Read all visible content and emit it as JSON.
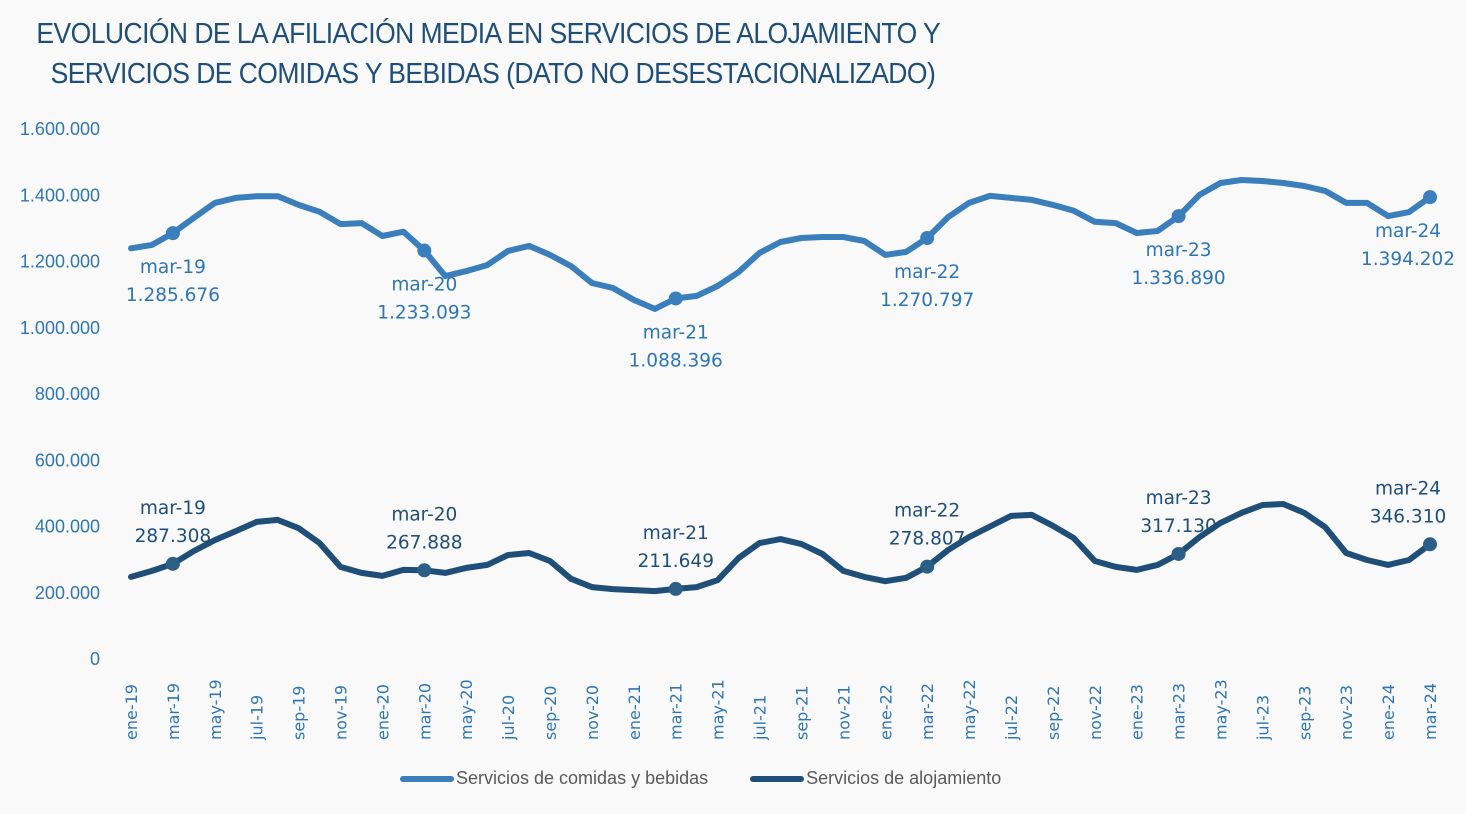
{
  "title_line1": "EVOLUCIÓN DE LA AFILIACIÓN MEDIA EN SERVICIOS DE ALOJAMIENTO Y",
  "title_line2": "SERVICIOS DE COMIDAS Y BEBIDAS (DATO NO DESESTACIONALIZADO)",
  "colors": {
    "comidas": "#3a7ebb",
    "alojamiento": "#1f4e79",
    "axis_text": "#2e75b6",
    "legend_text": "#595959",
    "title": "#1f4e79"
  },
  "chart_data": {
    "type": "line",
    "title": "EVOLUCIÓN DE LA AFILIACIÓN MEDIA EN SERVICIOS DE ALOJAMIENTO Y SERVICIOS DE COMIDAS Y BEBIDAS (DATO NO DESESTACIONALIZADO)",
    "xlabel": "",
    "ylabel": "",
    "ylim": [
      0,
      1600000
    ],
    "grid": false,
    "legend_position": "bottom",
    "yticks": [
      0,
      200000,
      400000,
      600000,
      800000,
      1000000,
      1200000,
      1400000,
      1600000
    ],
    "ytick_labels": [
      "0",
      "200.000",
      "400.000",
      "600.000",
      "800.000",
      "1.000.000",
      "1.200.000",
      "1.400.000",
      "1.600.000"
    ],
    "x": [
      "ene-19",
      "feb-19",
      "mar-19",
      "abr-19",
      "may-19",
      "jun-19",
      "jul-19",
      "ago-19",
      "sep-19",
      "oct-19",
      "nov-19",
      "dic-19",
      "ene-20",
      "feb-20",
      "mar-20",
      "abr-20",
      "may-20",
      "jun-20",
      "jul-20",
      "ago-20",
      "sep-20",
      "oct-20",
      "nov-20",
      "dic-20",
      "ene-21",
      "feb-21",
      "mar-21",
      "abr-21",
      "may-21",
      "jun-21",
      "jul-21",
      "ago-21",
      "sep-21",
      "oct-21",
      "nov-21",
      "dic-21",
      "ene-22",
      "feb-22",
      "mar-22",
      "abr-22",
      "may-22",
      "jun-22",
      "jul-22",
      "ago-22",
      "sep-22",
      "oct-22",
      "nov-22",
      "dic-22",
      "ene-23",
      "feb-23",
      "mar-23",
      "abr-23",
      "may-23",
      "jun-23",
      "jul-23",
      "ago-23",
      "sep-23",
      "oct-23",
      "nov-23",
      "dic-23",
      "ene-24",
      "feb-24",
      "mar-24"
    ],
    "xtick_labels": [
      "ene-19",
      "mar-19",
      "may-19",
      "jul-19",
      "sep-19",
      "nov-19",
      "ene-20",
      "mar-20",
      "may-20",
      "jul-20",
      "sep-20",
      "nov-20",
      "ene-21",
      "mar-21",
      "may-21",
      "jul-21",
      "sep-21",
      "nov-21",
      "ene-22",
      "mar-22",
      "may-22",
      "jul-22",
      "sep-22",
      "nov-22",
      "ene-23",
      "mar-23",
      "may-23",
      "jul-23",
      "sep-23",
      "nov-23",
      "ene-24",
      "mar-24"
    ],
    "series": [
      {
        "name": "Servicios de comidas y bebidas",
        "values": [
          1240000,
          1250000,
          1285676,
          1332000,
          1377000,
          1392000,
          1397000,
          1397000,
          1371000,
          1350000,
          1313000,
          1316000,
          1277000,
          1290000,
          1233093,
          1156000,
          1171000,
          1189000,
          1232000,
          1247000,
          1220000,
          1186000,
          1135000,
          1120000,
          1084000,
          1057000,
          1088396,
          1096000,
          1126000,
          1168000,
          1226000,
          1259000,
          1271000,
          1274000,
          1274000,
          1262000,
          1220000,
          1229000,
          1270797,
          1334000,
          1377000,
          1398000,
          1392000,
          1386000,
          1371000,
          1353000,
          1320000,
          1316000,
          1286000,
          1292000,
          1336890,
          1401000,
          1437000,
          1446000,
          1443000,
          1437000,
          1428000,
          1413000,
          1377000,
          1377000,
          1337000,
          1349000,
          1394202
        ],
        "annotations": [
          {
            "x": "mar-19",
            "label": "mar-19",
            "value_label": "1.285.676"
          },
          {
            "x": "mar-20",
            "label": "mar-20",
            "value_label": "1.233.093"
          },
          {
            "x": "mar-21",
            "label": "mar-21",
            "value_label": "1.088.396"
          },
          {
            "x": "mar-22",
            "label": "mar-22",
            "value_label": "1.270.797"
          },
          {
            "x": "mar-23",
            "label": "mar-23",
            "value_label": "1.336.890"
          },
          {
            "x": "mar-24",
            "label": "mar-24",
            "value_label": "1.394.202"
          }
        ]
      },
      {
        "name": "Servicios de alojamiento",
        "values": [
          248000,
          266000,
          287308,
          326000,
          359000,
          386000,
          414000,
          420000,
          395000,
          350000,
          278000,
          260000,
          251000,
          269000,
          267888,
          260000,
          275000,
          284000,
          314000,
          320000,
          296000,
          242000,
          217000,
          211000,
          208000,
          205000,
          211649,
          217000,
          238000,
          305000,
          350000,
          362000,
          347000,
          317000,
          266000,
          248000,
          235000,
          245000,
          278807,
          329000,
          368000,
          400000,
          432000,
          435000,
          402000,
          365000,
          296000,
          278000,
          269000,
          284000,
          317130,
          368000,
          411000,
          441000,
          465000,
          468000,
          441000,
          398000,
          320000,
          299000,
          284000,
          299000,
          346310
        ],
        "annotations": [
          {
            "x": "mar-19",
            "label": "mar-19",
            "value_label": "287.308"
          },
          {
            "x": "mar-20",
            "label": "mar-20",
            "value_label": "267.888"
          },
          {
            "x": "mar-21",
            "label": "mar-21",
            "value_label": "211.649"
          },
          {
            "x": "mar-22",
            "label": "mar-22",
            "value_label": "278.807"
          },
          {
            "x": "mar-23",
            "label": "mar-23",
            "value_label": "317.130"
          },
          {
            "x": "mar-24",
            "label": "mar-24",
            "value_label": "346.310"
          }
        ]
      }
    ]
  },
  "legend": {
    "items": [
      {
        "label": "Servicios de comidas y bebidas"
      },
      {
        "label": "Servicios de alojamiento"
      }
    ]
  }
}
